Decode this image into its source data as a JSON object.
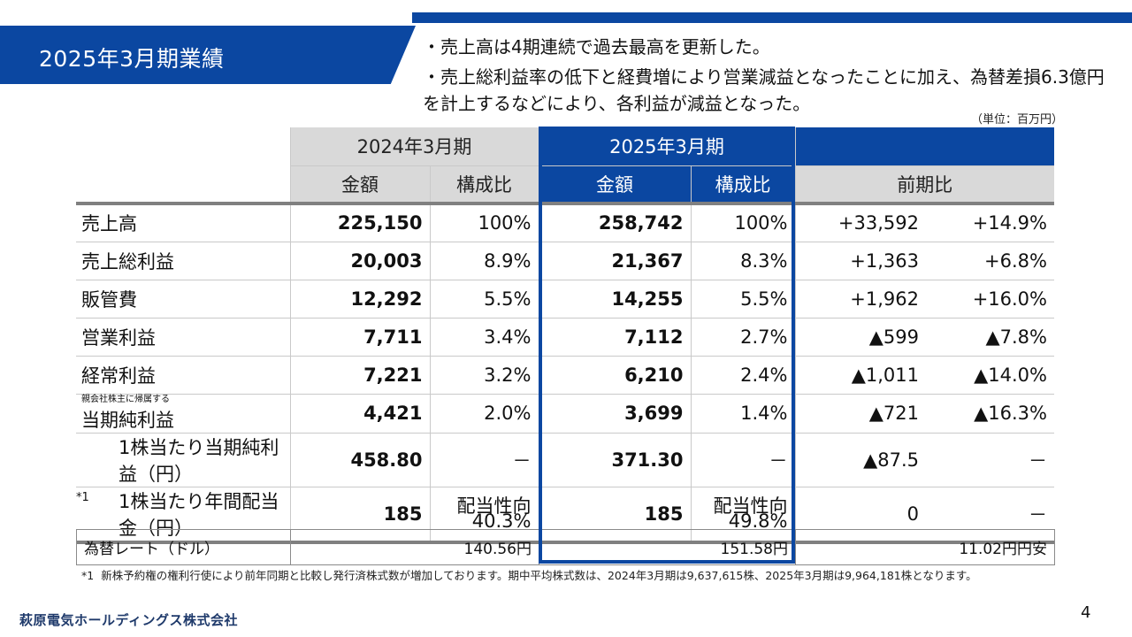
{
  "header": {
    "title": "2025年3月期業績",
    "bullets": [
      "・売上高は4期連続で過去最高を更新した。",
      "・売上総利益率の低下と経費増により営業減益となったことに加え、為替差損6.3億円を計上するなどにより、各利益が減益となった。"
    ],
    "unit": "（単位：百万円）"
  },
  "table": {
    "period_prev": "2024年3月期",
    "period_curr": "2025年3月期",
    "col_amount": "金額",
    "col_ratio": "構成比",
    "col_yoy": "前期比",
    "rows": [
      {
        "label": "売上高",
        "prev_amt": "225,150",
        "prev_ratio": "100%",
        "curr_amt": "258,742",
        "curr_ratio": "100%",
        "diff": "+33,592",
        "diff_pct": "+14.9%"
      },
      {
        "label": "売上総利益",
        "prev_amt": "20,003",
        "prev_ratio": "8.9%",
        "curr_amt": "21,367",
        "curr_ratio": "8.3%",
        "diff": "+1,363",
        "diff_pct": "+6.8%"
      },
      {
        "label": "販管費",
        "prev_amt": "12,292",
        "prev_ratio": "5.5%",
        "curr_amt": "14,255",
        "curr_ratio": "5.5%",
        "diff": "+1,962",
        "diff_pct": "+16.0%"
      },
      {
        "label": "営業利益",
        "prev_amt": "7,711",
        "prev_ratio": "3.4%",
        "curr_amt": "7,112",
        "curr_ratio": "2.7%",
        "diff": "▲599",
        "diff_pct": "▲7.8%"
      },
      {
        "label": "経常利益",
        "prev_amt": "7,221",
        "prev_ratio": "3.2%",
        "curr_amt": "6,210",
        "curr_ratio": "2.4%",
        "diff": "▲1,011",
        "diff_pct": "▲14.0%"
      },
      {
        "label_sub": "親会社株主に帰属する",
        "label": "当期純利益",
        "prev_amt": "4,421",
        "prev_ratio": "2.0%",
        "curr_amt": "3,699",
        "curr_ratio": "1.4%",
        "diff": "▲721",
        "diff_pct": "▲16.3%"
      },
      {
        "label": "1株当たり当期純利益（円）",
        "prev_amt": "458.80",
        "prev_ratio": "－",
        "curr_amt": "371.30",
        "curr_ratio": "－",
        "diff": "▲87.5",
        "diff_pct": "－"
      },
      {
        "note": "*1",
        "label": "1株当たり年間配当金（円）",
        "prev_amt": "185",
        "prev_ratio_l1": "配当性向",
        "prev_ratio_l2": "40.3%",
        "curr_amt": "185",
        "curr_ratio_l1": "配当性向",
        "curr_ratio_l2": "49.8%",
        "diff": "0",
        "diff_pct": "－"
      }
    ]
  },
  "fx": {
    "label": "為替レート（ドル）",
    "prev": "140.56円",
    "curr": "151.58円",
    "diff": "11.02円円安"
  },
  "footnote": {
    "mark": "*1",
    "text": "新株予約権の権利行使により前年同期と比較し発行済株式数が増加しております。期中平均株式数は、2024年3月期は9,637,615株、2025年3月期は9,964,181株となります。"
  },
  "footer": {
    "company": "萩原電気ホールディングス株式会社",
    "page": "4"
  },
  "colors": {
    "brand_blue": "#0b47a1",
    "header_gray": "#d9d9d9"
  }
}
